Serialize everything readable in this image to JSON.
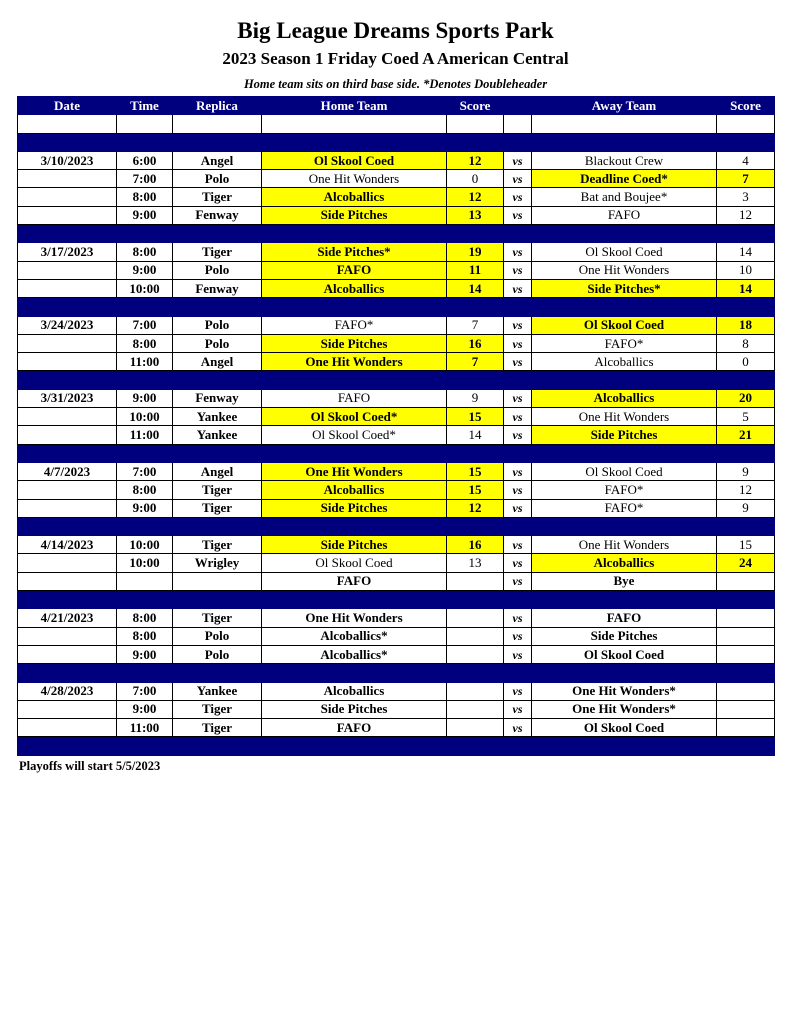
{
  "header": {
    "title": "Big League Dreams Sports Park",
    "subtitle": "2023 Season 1 Friday Coed A American Central",
    "note": "Home team sits on third base side.  *Denotes Doubleheader"
  },
  "colors": {
    "header_bg": "#00007f",
    "winner_highlight": "#ffff00"
  },
  "columns": [
    "Date",
    "Time",
    "Replica",
    "Home Team",
    "Score",
    "",
    "Away Team",
    "Score"
  ],
  "rows": [
    {
      "type": "blank"
    },
    {
      "type": "sep"
    },
    {
      "date": "3/10/2023",
      "time": "6:00",
      "replica": "Angel",
      "home": "Ol Skool Coed",
      "hs": "12",
      "vs": "vs",
      "away": "Blackout Crew",
      "as": "4",
      "winner": "home"
    },
    {
      "date": "",
      "time": "7:00",
      "replica": "Polo",
      "home": "One Hit Wonders",
      "hs": "0",
      "vs": "vs",
      "away": "Deadline Coed*",
      "as": "7",
      "winner": "away"
    },
    {
      "date": "",
      "time": "8:00",
      "replica": "Tiger",
      "home": "Alcoballics",
      "hs": "12",
      "vs": "vs",
      "away": "Bat and Boujee*",
      "as": "3",
      "winner": "home"
    },
    {
      "date": "",
      "time": "9:00",
      "replica": "Fenway",
      "home": "Side Pitches",
      "hs": "13",
      "vs": "vs",
      "away": "FAFO",
      "as": "12",
      "winner": "home"
    },
    {
      "type": "sep"
    },
    {
      "date": "3/17/2023",
      "time": "8:00",
      "replica": "Tiger",
      "home": "Side Pitches*",
      "hs": "19",
      "vs": "vs",
      "away": "Ol Skool Coed",
      "as": "14",
      "winner": "home"
    },
    {
      "date": "",
      "time": "9:00",
      "replica": "Polo",
      "home": "FAFO",
      "hs": "11",
      "vs": "vs",
      "away": "One Hit Wonders",
      "as": "10",
      "winner": "home"
    },
    {
      "date": "",
      "time": "10:00",
      "replica": "Fenway",
      "home": "Alcoballics",
      "hs": "14",
      "vs": "vs",
      "away": "Side Pitches*",
      "as": "14",
      "winner": "both"
    },
    {
      "type": "sep"
    },
    {
      "date": "3/24/2023",
      "time": "7:00",
      "replica": "Polo",
      "home": "FAFO*",
      "hs": "7",
      "vs": "vs",
      "away": "Ol Skool Coed",
      "as": "18",
      "winner": "away"
    },
    {
      "date": "",
      "time": "8:00",
      "replica": "Polo",
      "home": "Side Pitches",
      "hs": "16",
      "vs": "vs",
      "away": "FAFO*",
      "as": "8",
      "winner": "home"
    },
    {
      "date": "",
      "time": "11:00",
      "replica": "Angel",
      "home": "One Hit Wonders",
      "hs": "7",
      "vs": "vs",
      "away": "Alcoballics",
      "as": "0",
      "winner": "home"
    },
    {
      "type": "sep"
    },
    {
      "date": "3/31/2023",
      "time": "9:00",
      "replica": "Fenway",
      "home": "FAFO",
      "hs": "9",
      "vs": "vs",
      "away": "Alcoballics",
      "as": "20",
      "winner": "away"
    },
    {
      "date": "",
      "time": "10:00",
      "replica": "Yankee",
      "home": "Ol Skool Coed*",
      "hs": "15",
      "vs": "vs",
      "away": "One Hit Wonders",
      "as": "5",
      "winner": "home"
    },
    {
      "date": "",
      "time": "11:00",
      "replica": "Yankee",
      "home": "Ol Skool Coed*",
      "hs": "14",
      "vs": "vs",
      "away": "Side Pitches",
      "as": "21",
      "winner": "away"
    },
    {
      "type": "sep"
    },
    {
      "date": "4/7/2023",
      "time": "7:00",
      "replica": "Angel",
      "home": "One Hit Wonders",
      "hs": "15",
      "vs": "vs",
      "away": "Ol Skool Coed",
      "as": "9",
      "winner": "home"
    },
    {
      "date": "",
      "time": "8:00",
      "replica": "Tiger",
      "home": "Alcoballics",
      "hs": "15",
      "vs": "vs",
      "away": "FAFO*",
      "as": "12",
      "winner": "home"
    },
    {
      "date": "",
      "time": "9:00",
      "replica": "Tiger",
      "home": "Side Pitches",
      "hs": "12",
      "vs": "vs",
      "away": "FAFO*",
      "as": "9",
      "winner": "home"
    },
    {
      "type": "sep"
    },
    {
      "date": "4/14/2023",
      "time": "10:00",
      "replica": "Tiger",
      "home": "Side Pitches",
      "hs": "16",
      "vs": "vs",
      "away": "One Hit Wonders",
      "as": "15",
      "winner": "home"
    },
    {
      "date": "",
      "time": "10:00",
      "replica": "Wrigley",
      "home": "Ol Skool Coed",
      "hs": "13",
      "vs": "vs",
      "away": "Alcoballics",
      "as": "24",
      "winner": "away"
    },
    {
      "date": "",
      "time": "",
      "replica": "",
      "home": "FAFO",
      "hs": "",
      "vs": "vs",
      "away": "Bye",
      "as": "",
      "winner": ""
    },
    {
      "type": "sep"
    },
    {
      "date": "4/21/2023",
      "time": "8:00",
      "replica": "Tiger",
      "home": "One Hit Wonders",
      "hs": "",
      "vs": "vs",
      "away": "FAFO",
      "as": "",
      "winner": ""
    },
    {
      "date": "",
      "time": "8:00",
      "replica": "Polo",
      "home": "Alcoballics*",
      "hs": "",
      "vs": "vs",
      "away": "Side Pitches",
      "as": "",
      "winner": ""
    },
    {
      "date": "",
      "time": "9:00",
      "replica": "Polo",
      "home": "Alcoballics*",
      "hs": "",
      "vs": "vs",
      "away": "Ol Skool Coed",
      "as": "",
      "winner": ""
    },
    {
      "type": "sep"
    },
    {
      "date": "4/28/2023",
      "time": "7:00",
      "replica": "Yankee",
      "home": "Alcoballics",
      "hs": "",
      "vs": "vs",
      "away": "One Hit Wonders*",
      "as": "",
      "winner": ""
    },
    {
      "date": "",
      "time": "9:00",
      "replica": "Tiger",
      "home": "Side Pitches",
      "hs": "",
      "vs": "vs",
      "away": "One Hit Wonders*",
      "as": "",
      "winner": ""
    },
    {
      "date": "",
      "time": "11:00",
      "replica": "Tiger",
      "home": "FAFO",
      "hs": "",
      "vs": "vs",
      "away": "Ol Skool Coed",
      "as": "",
      "winner": ""
    },
    {
      "type": "sep"
    }
  ],
  "footer": "Playoffs will start 5/5/2023"
}
